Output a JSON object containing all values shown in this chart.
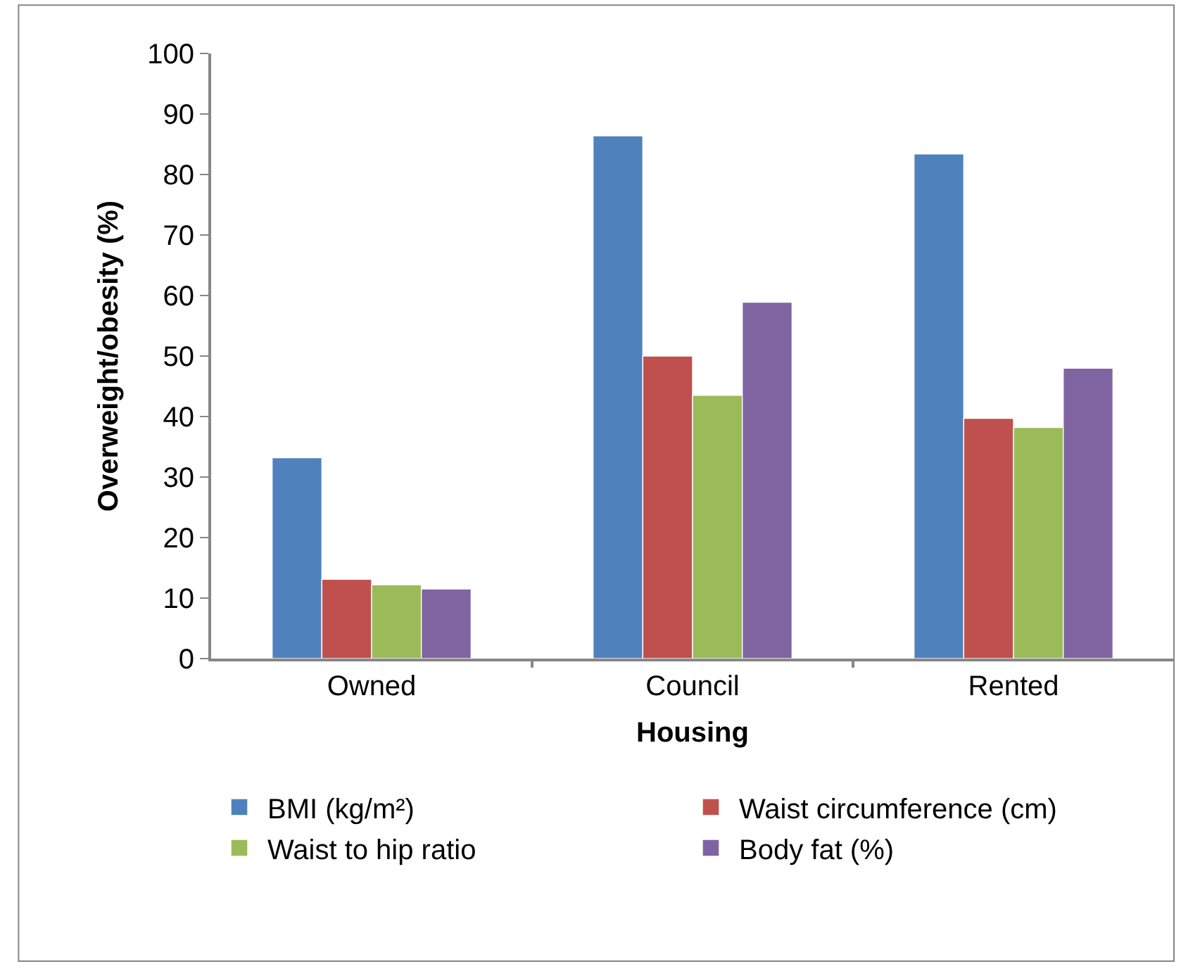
{
  "chart_data": {
    "type": "bar",
    "xlabel": "Housing",
    "ylabel": "Overweight/obesity (%)",
    "categories": [
      "Owned",
      "Council",
      "Rented"
    ],
    "series": [
      {
        "name": "BMI (kg/m²)",
        "color": "#4f81bd",
        "values": [
          33.2,
          86.4,
          83.4
        ]
      },
      {
        "name": "Waist circumference (cm)",
        "color": "#c0504d",
        "values": [
          13.1,
          50.0,
          39.7
        ]
      },
      {
        "name": "Waist to hip ratio",
        "color": "#9bbb59",
        "values": [
          12.2,
          43.5,
          38.2
        ]
      },
      {
        "name": "Body fat (%)",
        "color": "#8064a2",
        "values": [
          11.5,
          58.9,
          48.0
        ]
      }
    ],
    "ylim": [
      0,
      100
    ],
    "yticks": [
      0,
      10,
      20,
      30,
      40,
      50,
      60,
      70,
      80,
      90,
      100
    ],
    "legend": "bottom"
  }
}
